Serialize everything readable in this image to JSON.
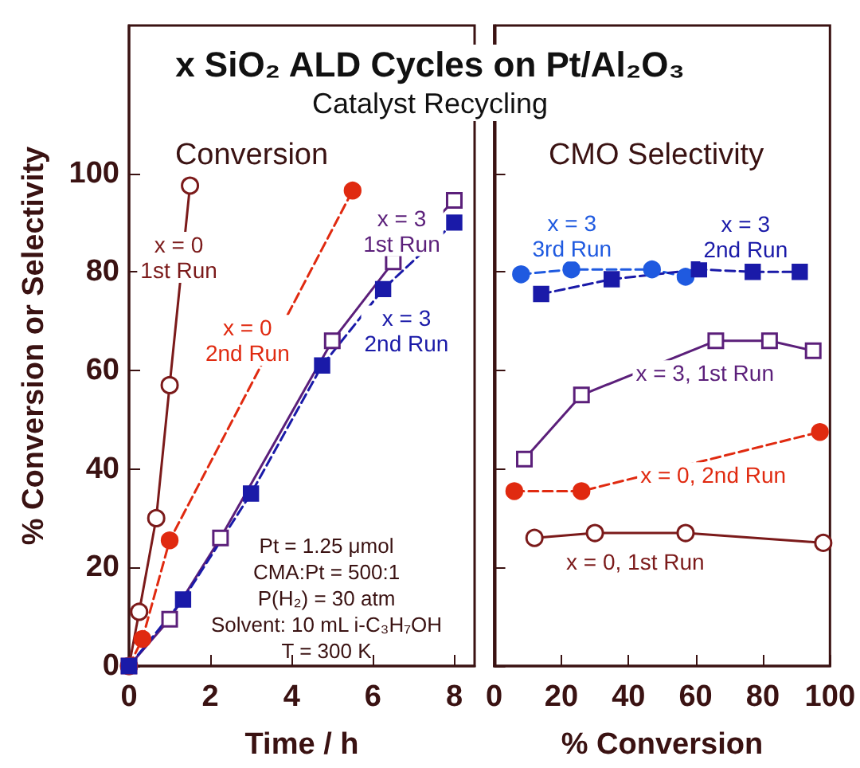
{
  "chart_data": [
    {
      "type": "line",
      "title": "x SiO₂ ALD Cycles on Pt/Al₂O₃",
      "subtitle": "Catalyst Recycling",
      "xlabel": "Time / h",
      "ylabel": "% Conversion or Selectivity",
      "annotations": [
        "Conversion",
        "Pt = 1.25 μmol\nCMA:Pt = 500:1\nP(H₂) = 30 atm\nSolvent: 10 mL i-C₃H₇OH\nT = 300 K"
      ],
      "xlim": [
        0,
        8.5
      ],
      "xticks": [
        0,
        2,
        4,
        6,
        8
      ],
      "ylim": [
        0,
        130
      ],
      "yticks": [
        0,
        20,
        40,
        60,
        80,
        100
      ],
      "series": [
        {
          "name": "x = 0\n1st Run",
          "color": "#7b1a1a",
          "marker": "circle",
          "line_style": "solid",
          "x": [
            0,
            0.25,
            0.67,
            1.0,
            1.5
          ],
          "values": [
            0,
            11,
            30,
            57,
            97.5
          ]
        },
        {
          "name": "x = 0\n2nd Run",
          "color": "#e02a10",
          "marker": "circle",
          "line_style": "dashed",
          "x": [
            0,
            0.33,
            1.0,
            5.5
          ],
          "values": [
            0,
            5.5,
            25.5,
            96.5
          ]
        },
        {
          "name": "x = 3\n1st Run",
          "color": "#5b1f7a",
          "marker": "square",
          "line_style": "solid",
          "x": [
            0,
            1.0,
            2.25,
            5.0,
            6.5,
            8
          ],
          "values": [
            0,
            9.5,
            26,
            66,
            82,
            94.5
          ]
        },
        {
          "name": "x = 3\n2nd Run",
          "color": "#1a1aa8",
          "marker": "square",
          "line_style": "dashed",
          "x": [
            0,
            1.33,
            3,
            4.75,
            6.25,
            8
          ],
          "values": [
            0,
            13.5,
            35,
            61,
            76.5,
            90
          ]
        }
      ]
    },
    {
      "type": "line",
      "title": "CMO Selectivity",
      "xlabel": "% Conversion",
      "xlim": [
        0,
        100
      ],
      "xticks": [
        0,
        20,
        40,
        60,
        80,
        100
      ],
      "ylim": [
        0,
        130
      ],
      "yticks": [
        0,
        20,
        40,
        60,
        80,
        100
      ],
      "tick_labels": "x",
      "series": [
        {
          "name": "x = 3\n3rd Run",
          "color": "#1f5ae0",
          "marker": "circle",
          "line_style": "dashed",
          "x": [
            8,
            23,
            47,
            57
          ],
          "values": [
            79.5,
            80.5,
            80.5,
            79
          ]
        },
        {
          "name": "x = 3\n2nd Run",
          "color": "#1a1aa8",
          "marker": "square",
          "line_style": "dashed",
          "x": [
            14,
            35,
            61,
            77,
            91
          ],
          "values": [
            75.5,
            78.5,
            80.5,
            80,
            80
          ]
        },
        {
          "name": "x = 3, 1st Run",
          "color": "#5b1f7a",
          "marker": "square",
          "line_style": "solid",
          "x": [
            9,
            26,
            66,
            82,
            95
          ],
          "values": [
            42,
            55,
            66,
            66,
            64
          ]
        },
        {
          "name": "x = 0, 2nd Run",
          "color": "#e02a10",
          "marker": "circle",
          "line_style": "dashed",
          "x": [
            6,
            26,
            97
          ],
          "values": [
            35.5,
            35.5,
            47.5
          ]
        },
        {
          "name": "x = 0, 1st Run",
          "color": "#7b1a1a",
          "marker": "circle",
          "line_style": "solid",
          "x": [
            12,
            30,
            57,
            98
          ],
          "values": [
            26,
            27,
            27,
            25
          ]
        }
      ]
    }
  ]
}
